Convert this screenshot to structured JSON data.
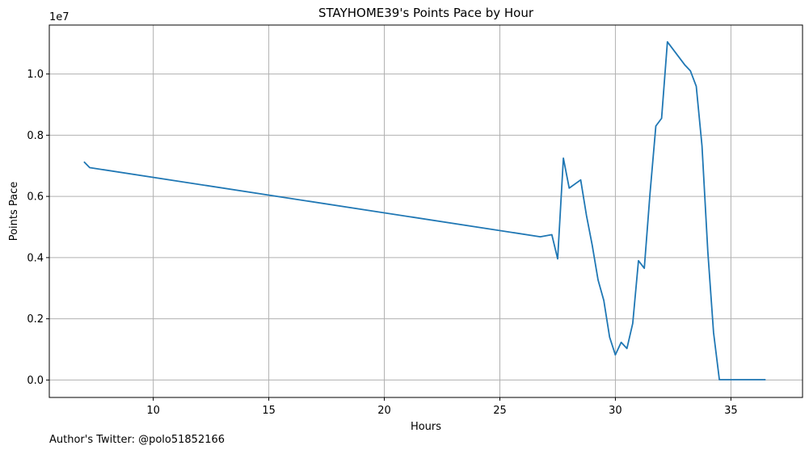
{
  "chart_data": {
    "type": "line",
    "title": "STAYHOME39's Points Pace by Hour",
    "xlabel": "Hours",
    "ylabel": "Points Pace",
    "y_offset_label": "1e7",
    "xlim": [
      5.5,
      38.1
    ],
    "ylim": [
      -0.057,
      1.16
    ],
    "xticks": [
      10,
      15,
      20,
      25,
      30,
      35
    ],
    "xtick_labels": [
      "10",
      "15",
      "20",
      "25",
      "30",
      "35"
    ],
    "yticks": [
      0.0,
      0.2,
      0.4,
      0.6,
      0.8,
      1.0
    ],
    "ytick_labels": [
      "0.0",
      "0.2",
      "0.4",
      "0.6",
      "0.8",
      "1.0"
    ],
    "grid": true,
    "series": [
      {
        "color": "#1f77b4",
        "x": [
          7.0,
          7.25,
          26.75,
          27.25,
          27.5,
          27.75,
          28.0,
          28.5,
          28.75,
          29.0,
          29.25,
          29.5,
          29.75,
          30.0,
          30.25,
          30.5,
          30.75,
          31.0,
          31.25,
          31.5,
          31.75,
          32.0,
          32.25,
          33.0,
          33.25,
          33.5,
          33.75,
          34.0,
          34.25,
          34.5,
          34.75,
          35.0,
          36.5
        ],
        "y": [
          0.713,
          0.694,
          0.468,
          0.475,
          0.396,
          0.725,
          0.627,
          0.654,
          0.537,
          0.44,
          0.327,
          0.26,
          0.14,
          0.082,
          0.123,
          0.103,
          0.185,
          0.39,
          0.365,
          0.61,
          0.83,
          0.855,
          1.105,
          1.03,
          1.01,
          0.96,
          0.765,
          0.42,
          0.155,
          0.001,
          0.001,
          0.001,
          0.001
        ]
      }
    ]
  },
  "footer": {
    "text": "Author's Twitter: @polo51852166"
  }
}
